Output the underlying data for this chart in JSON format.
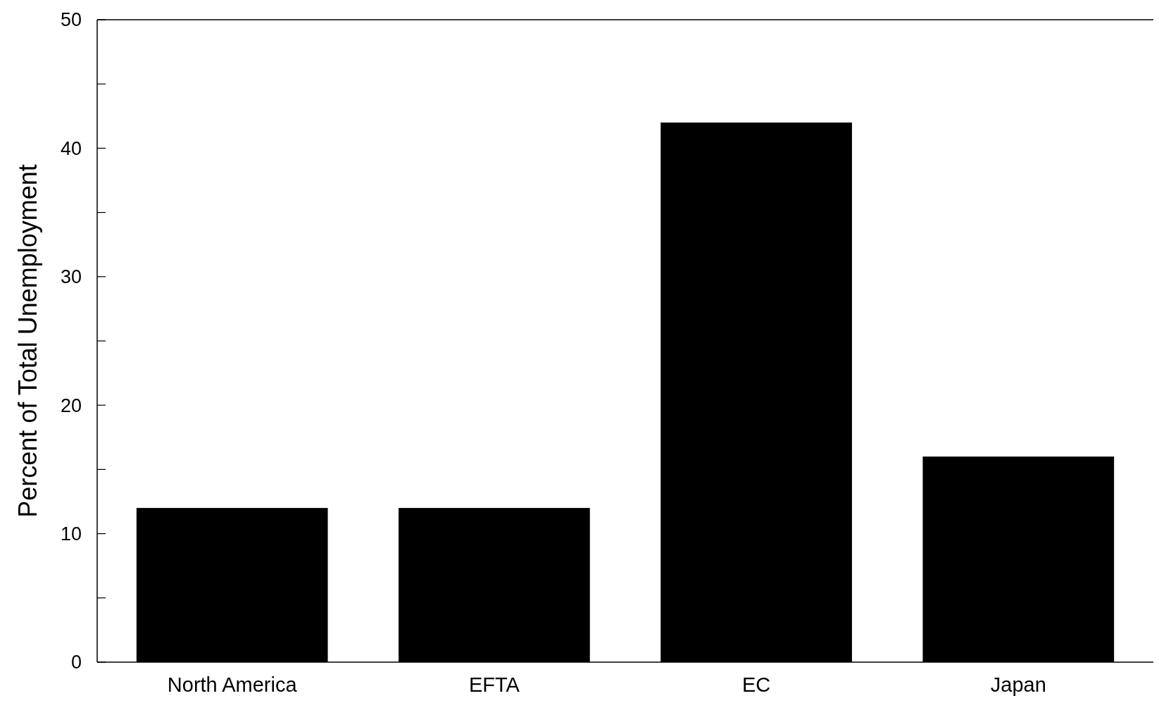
{
  "chart_data": {
    "type": "bar",
    "ylabel": "Percent of Total Unemployment",
    "categories": [
      "North America",
      "EFTA",
      "EC",
      "Japan"
    ],
    "values": [
      12,
      12,
      42,
      16
    ],
    "color": "#000000",
    "ylim": [
      0,
      50
    ],
    "yticks": [
      0,
      {
        "value": 5,
        "label": null
      },
      10,
      {
        "value": 15,
        "label": null
      },
      20,
      {
        "value": 25,
        "label": null
      },
      30,
      {
        "value": 35,
        "label": null
      },
      40,
      {
        "value": 45,
        "label": null
      },
      50
    ],
    "grid": false
  }
}
